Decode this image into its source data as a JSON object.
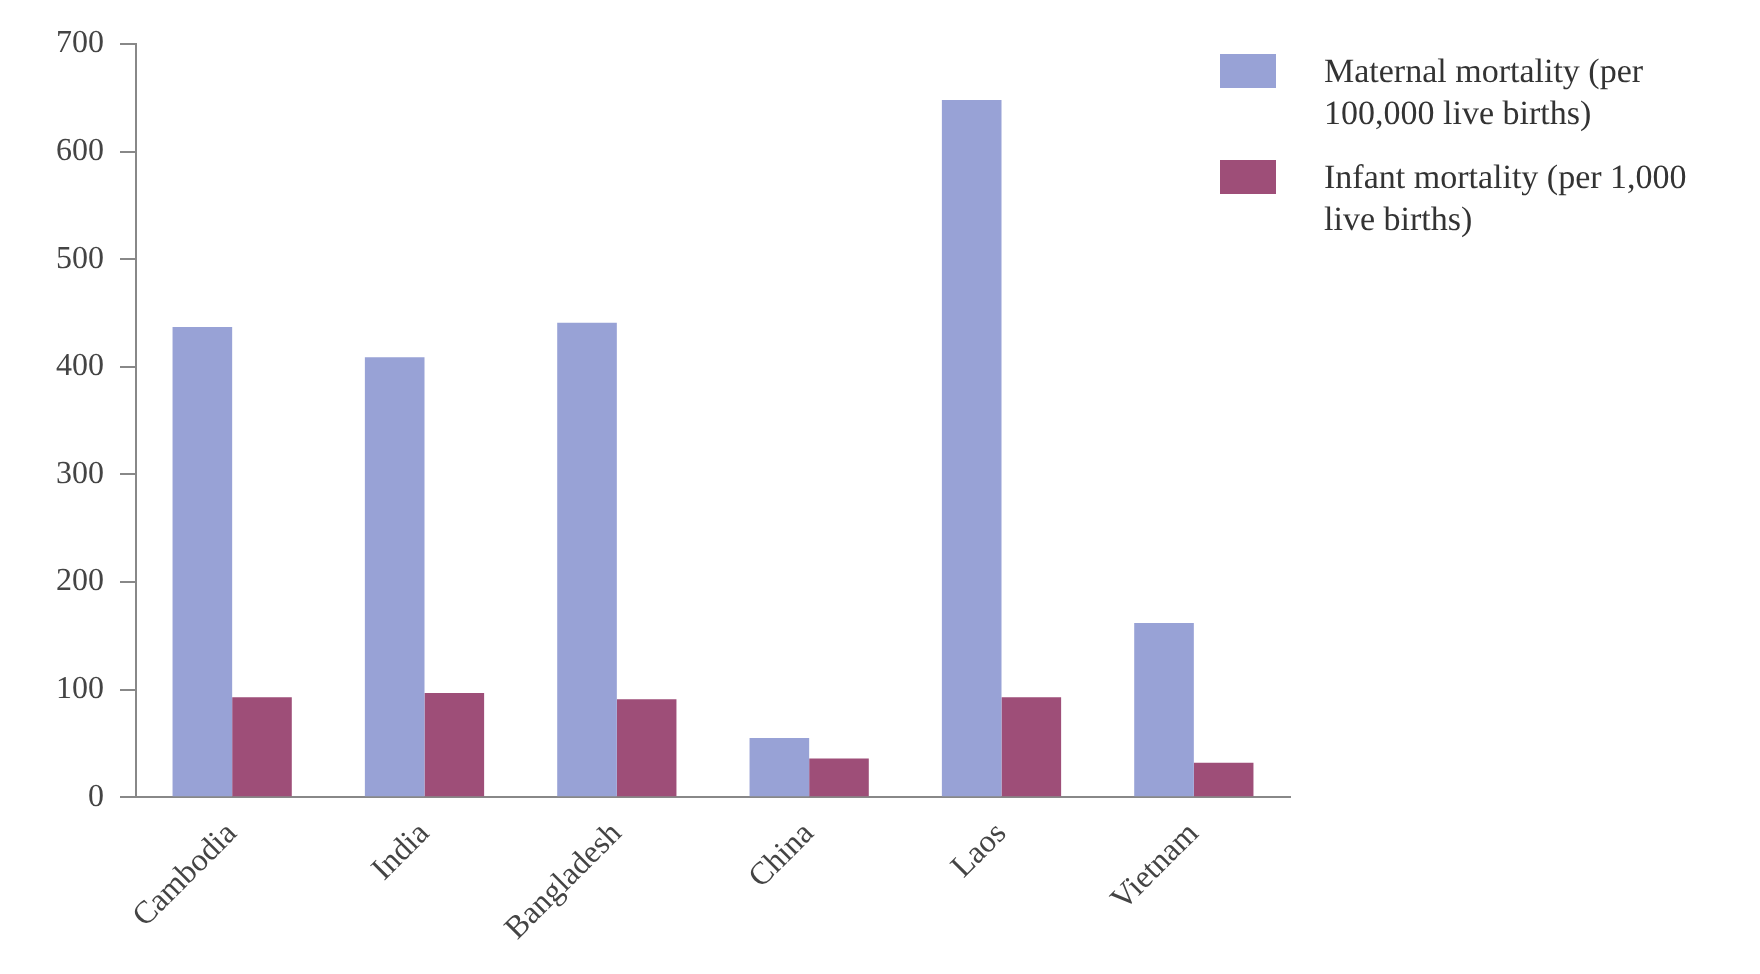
{
  "chart_data": {
    "type": "bar",
    "categories": [
      "Cambodia",
      "India",
      "Bangladesh",
      "China",
      "Laos",
      "Vietnam"
    ],
    "series": [
      {
        "name": "Maternal mortality (per 100,000 live births)",
        "color": "#98a2d6",
        "values": [
          437,
          409,
          441,
          55,
          648,
          162
        ]
      },
      {
        "name": "Infant mortality (per 1,000 live births)",
        "color": "#9e4e78",
        "values": [
          93,
          97,
          91,
          36,
          93,
          32
        ]
      }
    ],
    "ylim": [
      0,
      700
    ],
    "yticks": [
      0,
      100,
      200,
      300,
      400,
      500,
      600,
      700
    ],
    "grid": false,
    "legend": "top right"
  }
}
